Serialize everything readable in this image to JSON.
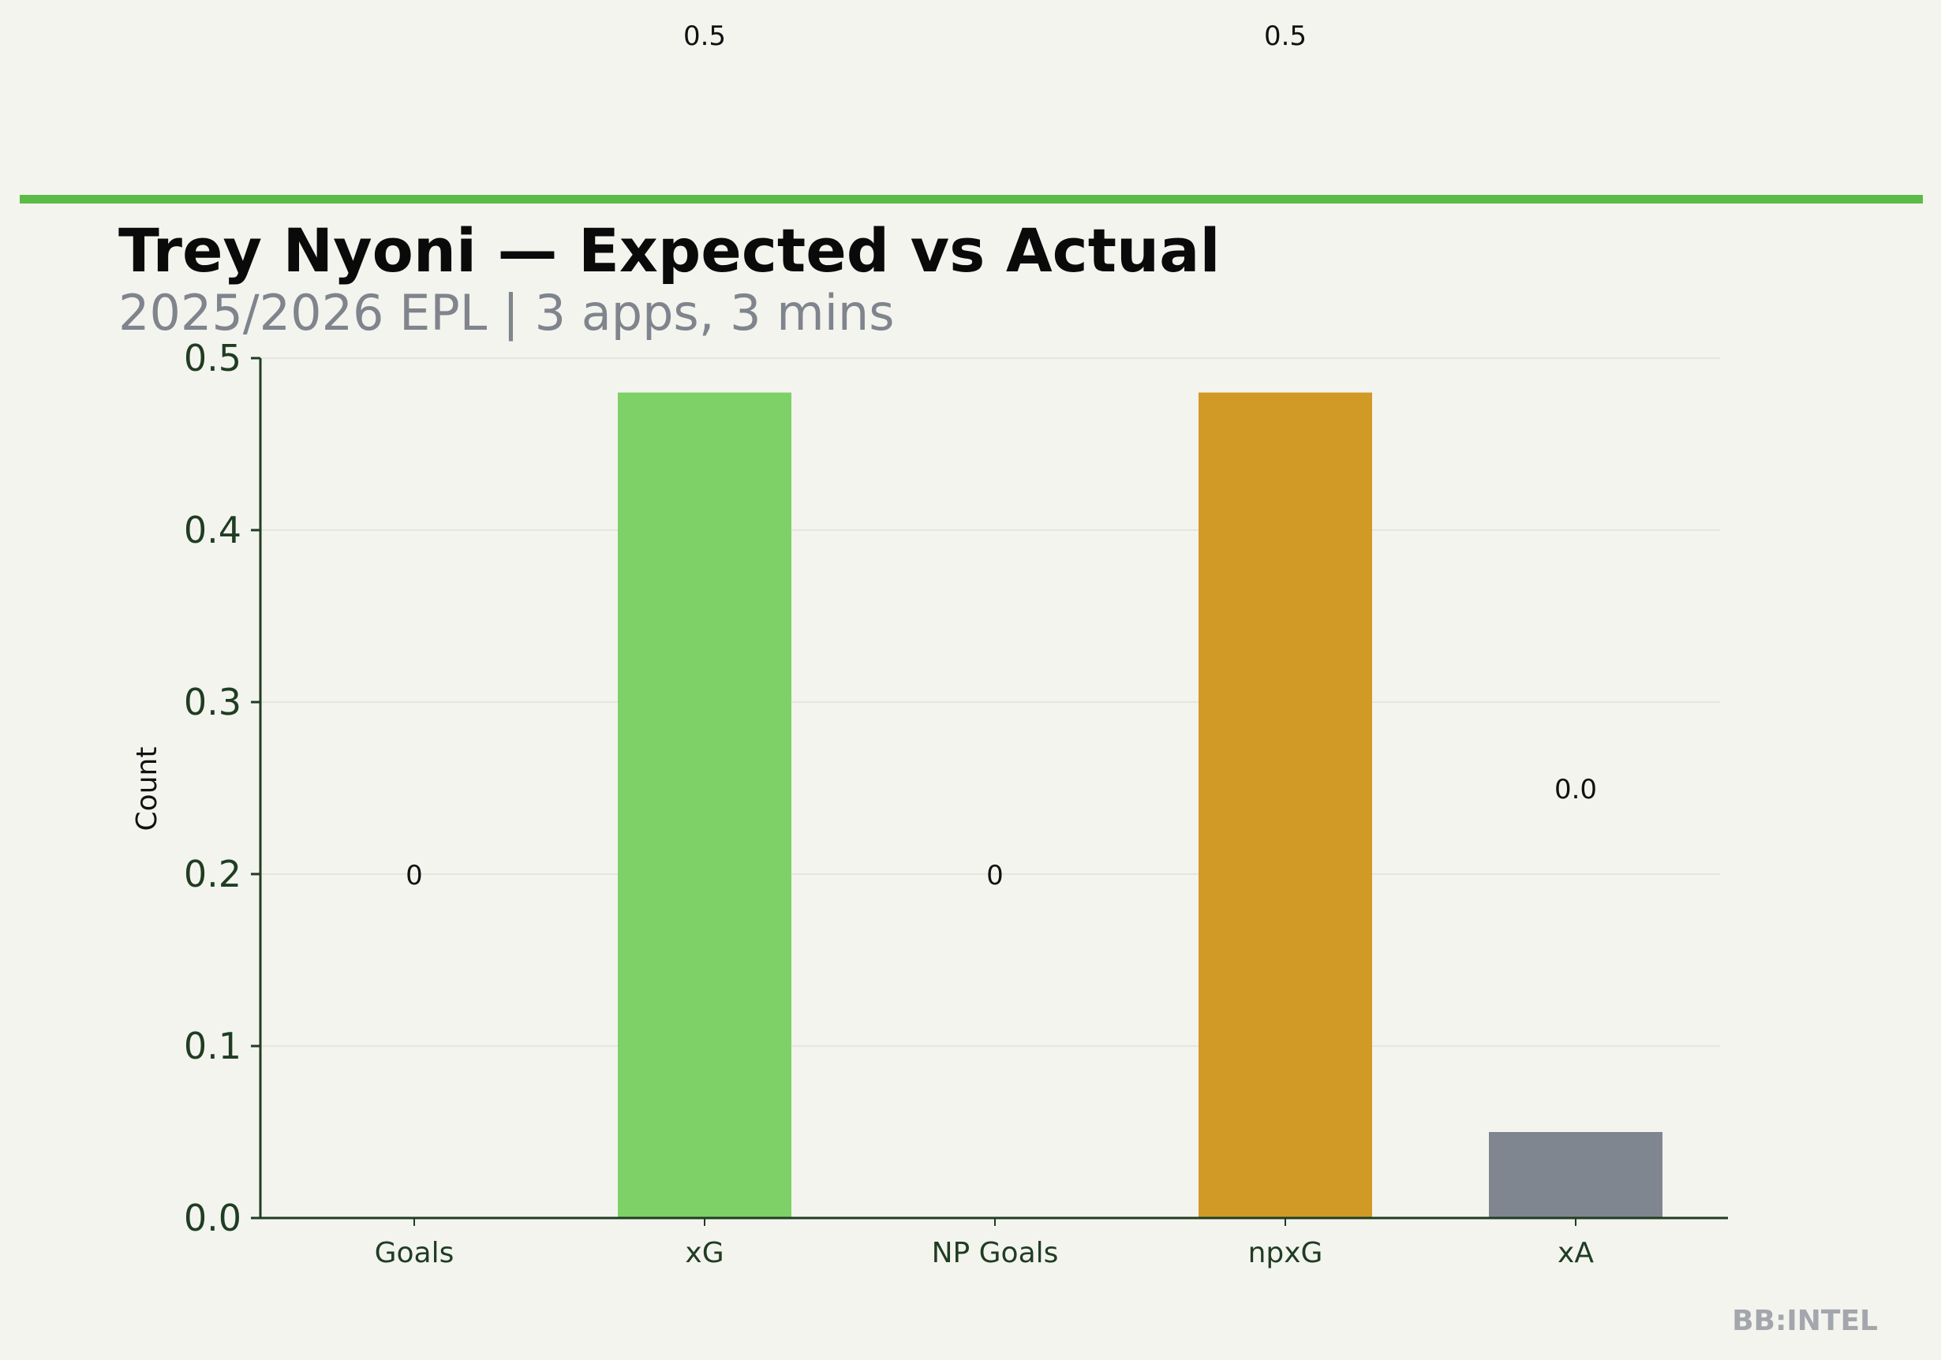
{
  "chart_data": {
    "type": "bar",
    "title": "Trey Nyoni — Expected vs Actual",
    "subtitle": "2025/2026 EPL | 3 apps, 3 mins",
    "ylabel": "Count",
    "ylim": [
      0,
      0.5
    ],
    "yticks": [
      0.0,
      0.1,
      0.2,
      0.3,
      0.4,
      0.5
    ],
    "ytick_labels": [
      "0.0",
      "0.1",
      "0.2",
      "0.3",
      "0.4",
      "0.5"
    ],
    "grid": true,
    "categories": [
      "Goals",
      "xG",
      "NP Goals",
      "npxG",
      "xA"
    ],
    "values": [
      0,
      0.48,
      0,
      0.48,
      0.05
    ],
    "value_labels": [
      "0",
      "0.5",
      "0",
      "0.5",
      "0.0"
    ],
    "colors": [
      "#7dd166",
      "#7dd166",
      "#d19a26",
      "#d19a26",
      "#80868f"
    ]
  },
  "brand": {
    "accent_color": "#5bbb47",
    "watermark": "BB:INTEL"
  }
}
